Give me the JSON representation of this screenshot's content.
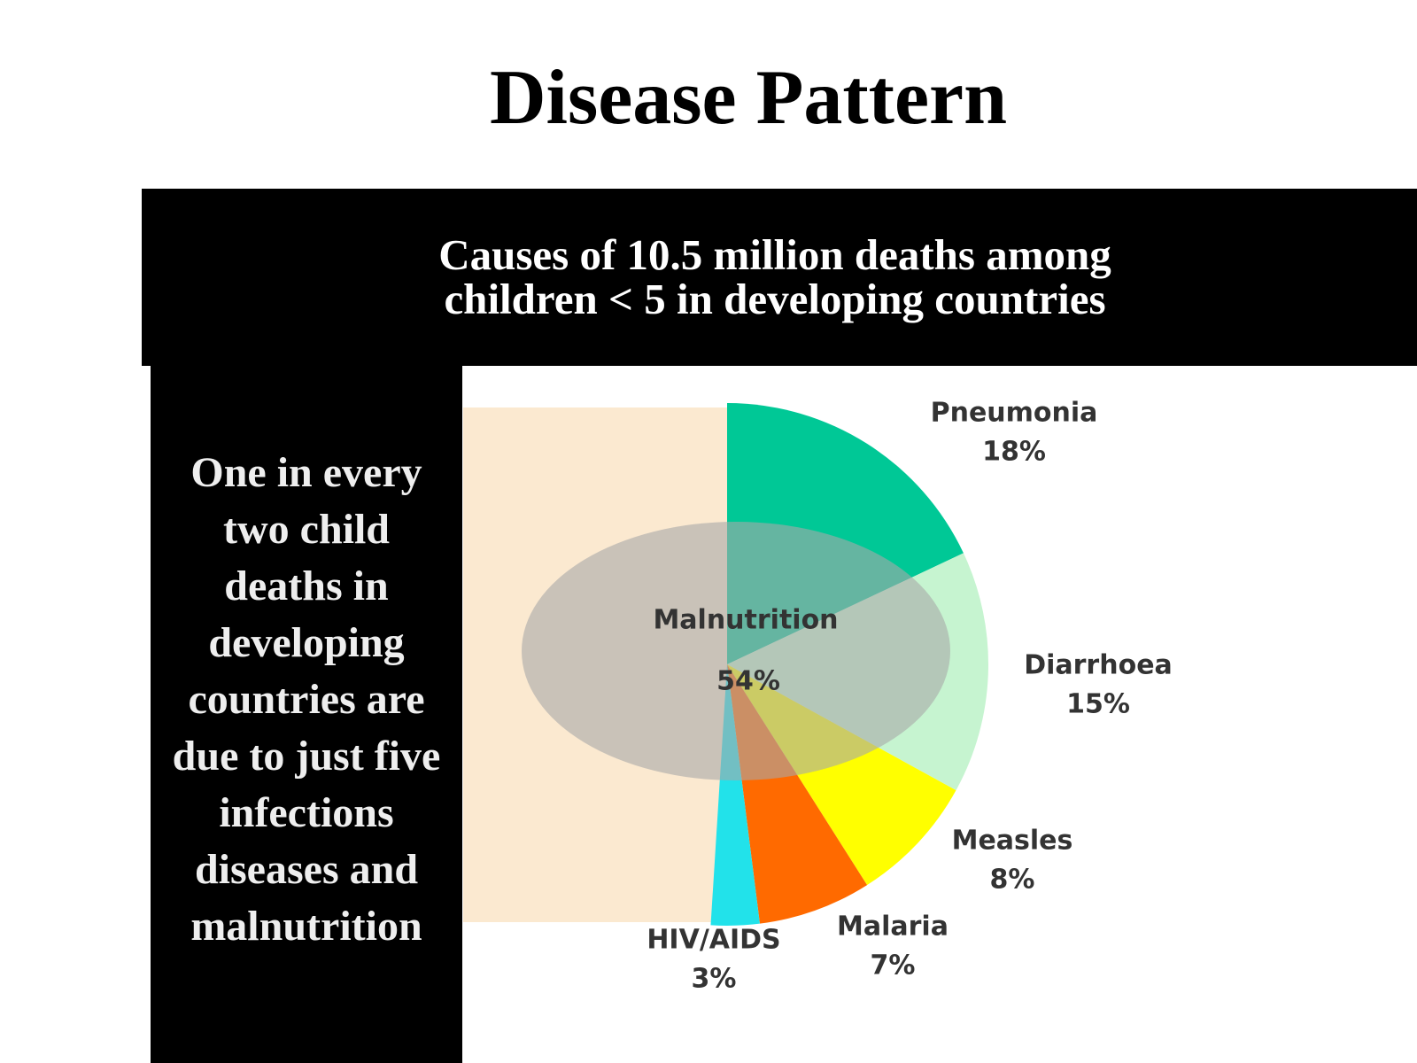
{
  "slide_title": "Disease Pattern",
  "side_text": "One in every two child deaths in developing countries are due to just five infections diseases and malnutrition",
  "chart_data": {
    "type": "pie",
    "title": "Causes of 10.5 million deaths among children < 5 in developing countries",
    "categories": [
      "Pneumonia",
      "Diarrhoea",
      "Measles",
      "Malaria",
      "HIV/AIDS"
    ],
    "values": [
      18,
      15,
      8,
      7,
      3
    ],
    "value_labels": [
      "18%",
      "15%",
      "8%",
      "7%",
      "3%"
    ],
    "colors": [
      "#00c896",
      "#c6f4d0",
      "#ffff00",
      "#ff6a00",
      "#22e2ea"
    ],
    "overlay": {
      "label": "Malnutrition",
      "value": 54,
      "value_label": "54%",
      "color": "#a8a8a8"
    }
  }
}
